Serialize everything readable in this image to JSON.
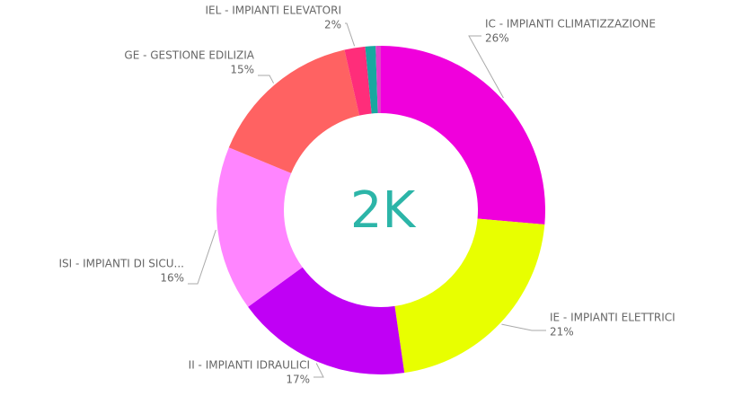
{
  "chart_data": {
    "type": "donut",
    "center_label": "2K",
    "categories": [
      "IC - IMPIANTI CLIMATIZZAZIONE",
      "IE - IMPIANTI ELETTRICI",
      "II - IMPIANTI IDRAULICI",
      "ISI - IMPIANTI DI SICU...",
      "GE - GESTIONE EDILIZIA",
      "IEL - IMPIANTI ELEVATORI",
      null,
      null
    ],
    "values": [
      26,
      21,
      17,
      16,
      15,
      2,
      1,
      0.5
    ],
    "value_labels": [
      "26%",
      "21%",
      "17%",
      "16%",
      "15%",
      "2%",
      null,
      null
    ],
    "colors": [
      "#f000dc",
      "#e8ff00",
      "#c000f5",
      "#ff85ff",
      "#ff6262",
      "#ff2d7a",
      "#17a8a0",
      "#e040c8"
    ]
  }
}
